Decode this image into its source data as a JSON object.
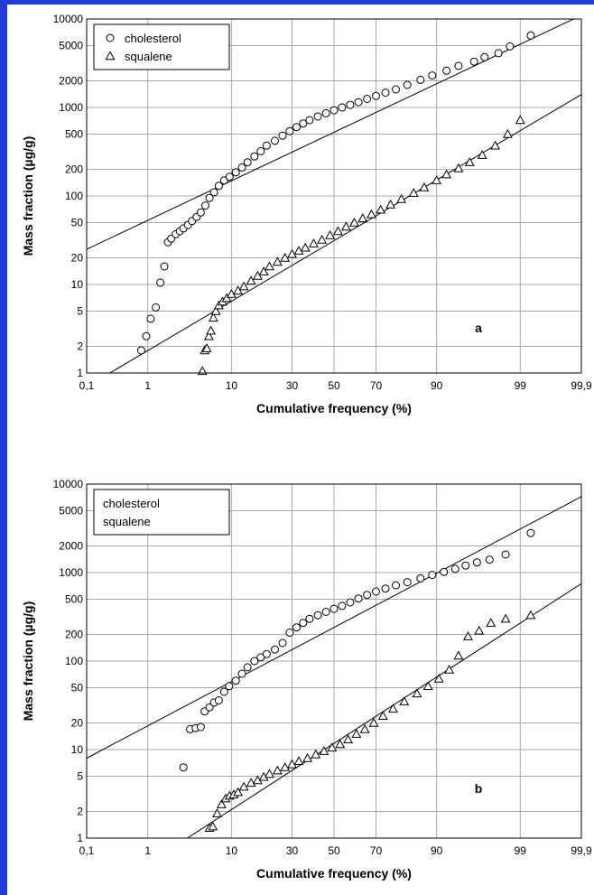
{
  "frame": {
    "top_border_color": "#1f3bd6",
    "left_border_color": "#1f3bd6"
  },
  "chart_data": [
    {
      "type": "scatter",
      "panel_label": "a",
      "xlabel": "Cumulative frequency (%)",
      "ylabel": "Mass fraction (µg/g)",
      "x_scale": "probability",
      "y_scale": "log",
      "xlim": [
        0.1,
        99.9
      ],
      "ylim": [
        1,
        10000
      ],
      "x_ticks": [
        0.1,
        1,
        10,
        30,
        50,
        70,
        90,
        99,
        99.9
      ],
      "x_tick_labels": [
        "0,1",
        "1",
        "10",
        "30",
        "50",
        "70",
        "90",
        "99",
        "99,9"
      ],
      "y_ticks": [
        1,
        2,
        5,
        10,
        20,
        50,
        100,
        200,
        500,
        1000,
        2000,
        5000,
        10000
      ],
      "y_tick_labels": [
        "1",
        "2",
        "5",
        "10",
        "20",
        "50",
        "100",
        "200",
        "500",
        "1000",
        "2000",
        "5000",
        "10000"
      ],
      "grid": true,
      "legend": {
        "position": "top-left",
        "show_markers": true
      },
      "series": [
        {
          "name": "cholesterol",
          "marker": "circle",
          "x": [
            0.8,
            0.95,
            1.1,
            1.3,
            1.5,
            1.7,
            1.9,
            2.1,
            2.4,
            2.7,
            3.0,
            3.4,
            3.8,
            4.3,
            4.8,
            5.4,
            6.0,
            6.7,
            7.5,
            8.5,
            9.6,
            11,
            12.5,
            14,
            16,
            18,
            20,
            23,
            26,
            29,
            32,
            35,
            38,
            42,
            46,
            50,
            54,
            58,
            62,
            66,
            70,
            74,
            78,
            82,
            86,
            89,
            92,
            94,
            96,
            97,
            98,
            98.6,
            99.3
          ],
          "y": [
            1.8,
            2.6,
            4.1,
            5.5,
            10.5,
            16,
            30,
            33,
            37,
            40,
            43,
            47,
            52,
            58,
            65,
            78,
            95,
            110,
            130,
            150,
            165,
            185,
            210,
            240,
            280,
            320,
            370,
            420,
            480,
            540,
            600,
            660,
            720,
            790,
            860,
            930,
            1000,
            1070,
            1150,
            1250,
            1350,
            1470,
            1600,
            1800,
            2050,
            2300,
            2600,
            2950,
            3300,
            3700,
            4100,
            4900,
            6500
          ]
        },
        {
          "name": "squalene",
          "marker": "triangle",
          "x": [
            5.0,
            5.3,
            5.6,
            5.9,
            6.2,
            6.6,
            7.0,
            7.5,
            8.2,
            9.0,
            10,
            11.5,
            13,
            15,
            17,
            19,
            21,
            24,
            27,
            30,
            33,
            36,
            40,
            44,
            48,
            52,
            56,
            60,
            64,
            68,
            72,
            76,
            80,
            84,
            87,
            90,
            92,
            94,
            95.5,
            96.8,
            97.8,
            98.5,
            99.0
          ],
          "y": [
            1.05,
            1.8,
            1.9,
            2.6,
            3.0,
            4.2,
            5.0,
            5.8,
            6.4,
            7.0,
            7.8,
            8.5,
            9.5,
            11,
            12.5,
            14,
            16,
            18,
            20,
            22,
            24,
            26,
            29,
            32,
            36,
            40,
            45,
            50,
            56,
            62,
            70,
            80,
            92,
            108,
            125,
            150,
            175,
            205,
            240,
            290,
            370,
            500,
            720
          ]
        }
      ],
      "fit_lines": [
        {
          "series": "cholesterol",
          "x": [
            0.1,
            99.9
          ],
          "y": [
            25,
            11000
          ]
        },
        {
          "series": "squalene",
          "x": [
            0.1,
            99.9
          ],
          "y": [
            0.7,
            1400
          ]
        }
      ]
    },
    {
      "type": "scatter",
      "panel_label": "b",
      "xlabel": "Cumulative frequency (%)",
      "ylabel": "Mass fraction (µg/g)",
      "x_scale": "probability",
      "y_scale": "log",
      "xlim": [
        0.1,
        99.9
      ],
      "ylim": [
        1,
        10000
      ],
      "x_ticks": [
        0.1,
        1,
        10,
        30,
        50,
        70,
        90,
        99,
        99.9
      ],
      "x_tick_labels": [
        "0,1",
        "1",
        "10",
        "30",
        "50",
        "70",
        "90",
        "99",
        "99,9"
      ],
      "y_ticks": [
        1,
        2,
        5,
        10,
        20,
        50,
        100,
        200,
        500,
        1000,
        2000,
        5000,
        10000
      ],
      "y_tick_labels": [
        "1",
        "2",
        "5",
        "10",
        "20",
        "50",
        "100",
        "200",
        "500",
        "1000",
        "2000",
        "5000",
        "10000"
      ],
      "grid": true,
      "legend": {
        "position": "top-left",
        "show_markers": false
      },
      "series": [
        {
          "name": "cholesterol",
          "marker": "circle",
          "x": [
            3.0,
            3.6,
            4.2,
            4.8,
            5.3,
            6.0,
            6.7,
            7.5,
            8.5,
            9.5,
            11,
            12.5,
            14,
            16,
            18,
            20,
            23,
            26,
            29,
            32,
            35,
            38,
            42,
            46,
            50,
            54,
            58,
            62,
            66,
            70,
            74,
            78,
            82,
            86,
            89,
            91.5,
            93.5,
            95,
            96.3,
            97.4,
            98.4,
            99.3
          ],
          "y": [
            6.3,
            17,
            17.5,
            18,
            27,
            30,
            34,
            36,
            45,
            52,
            60,
            72,
            85,
            100,
            110,
            120,
            135,
            160,
            210,
            240,
            270,
            300,
            330,
            360,
            390,
            420,
            460,
            510,
            560,
            610,
            660,
            720,
            780,
            860,
            940,
            1020,
            1100,
            1200,
            1300,
            1400,
            1600,
            2800
          ]
        },
        {
          "name": "squalene",
          "marker": "triangle",
          "x": [
            6.0,
            6.5,
            7.2,
            8.0,
            8.8,
            9.6,
            10.5,
            11.5,
            13,
            15,
            17,
            19,
            21,
            24,
            27,
            30,
            33,
            37,
            41,
            45,
            49,
            53,
            57,
            61,
            65,
            69,
            73,
            77,
            81,
            85,
            88,
            90.5,
            92.5,
            94,
            95.3,
            96.5,
            97.5,
            98.4,
            99.3
          ],
          "y": [
            1.3,
            1.35,
            1.9,
            2.4,
            2.8,
            3.0,
            3.1,
            3.3,
            3.8,
            4.2,
            4.5,
            4.9,
            5.3,
            5.8,
            6.3,
            6.8,
            7.4,
            8.0,
            8.8,
            9.6,
            10.5,
            11.5,
            13,
            15,
            17,
            20,
            24,
            29,
            35,
            43,
            52,
            63,
            80,
            115,
            190,
            220,
            270,
            300,
            330
          ]
        }
      ],
      "fit_lines": [
        {
          "series": "cholesterol",
          "x": [
            0.1,
            99.9
          ],
          "y": [
            8,
            7200
          ]
        },
        {
          "series": "squalene",
          "x": [
            2.8,
            99.9
          ],
          "y": [
            0.9,
            750
          ]
        }
      ]
    }
  ]
}
